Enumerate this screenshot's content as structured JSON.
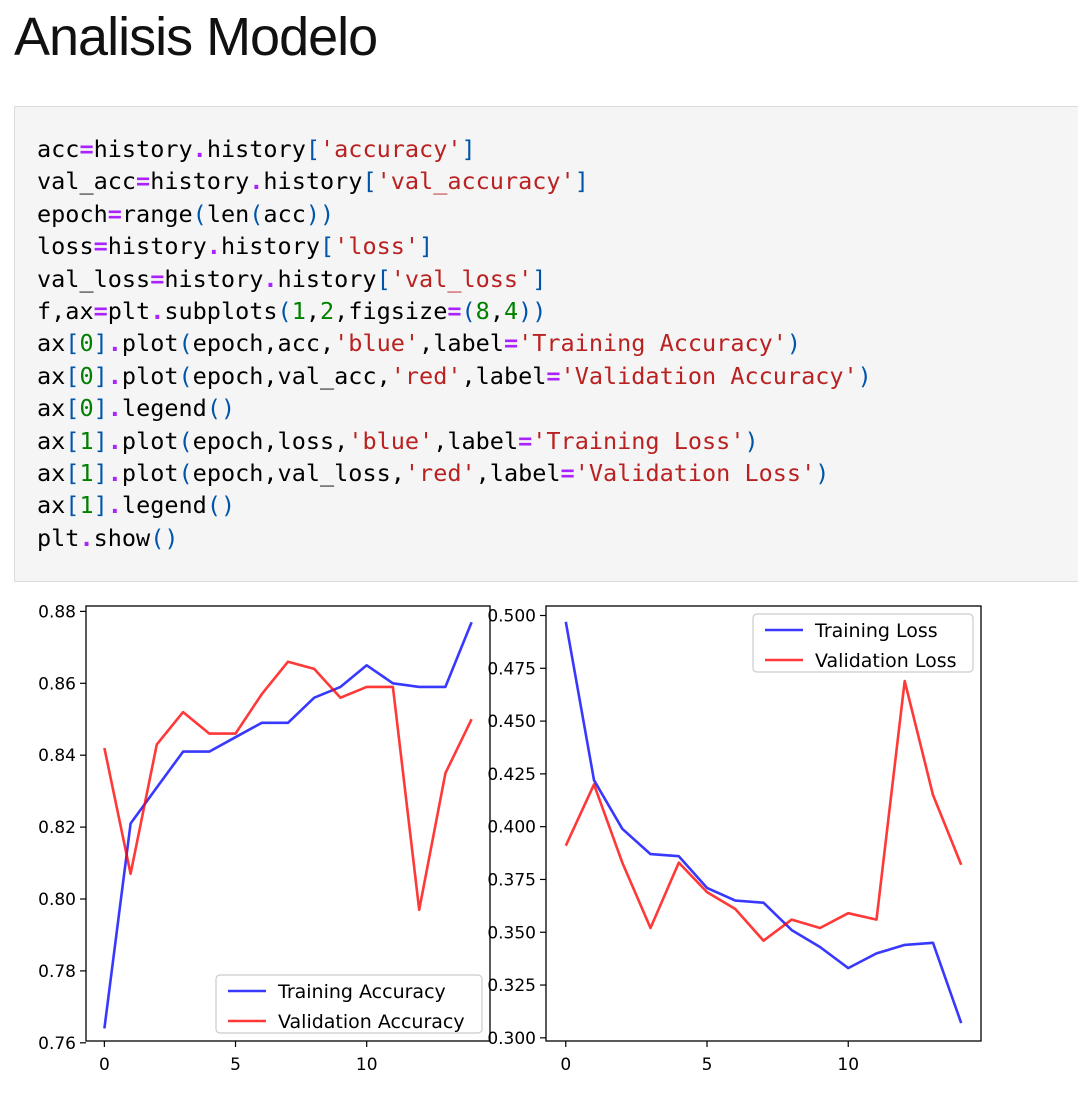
{
  "page": {
    "title": "Analisis Modelo"
  },
  "code_lines": [
    [
      [
        "acc",
        ""
      ],
      [
        "=",
        "op"
      ],
      [
        "history",
        ""
      ],
      [
        ".",
        "op"
      ],
      [
        "history",
        ""
      ],
      [
        "[",
        "b"
      ],
      [
        "'accuracy'",
        "s"
      ],
      [
        "]",
        "b"
      ]
    ],
    [
      [
        "val_acc",
        ""
      ],
      [
        "=",
        "op"
      ],
      [
        "history",
        ""
      ],
      [
        ".",
        "op"
      ],
      [
        "history",
        ""
      ],
      [
        "[",
        "b"
      ],
      [
        "'val_accuracy'",
        "s"
      ],
      [
        "]",
        "b"
      ]
    ],
    [
      [
        "epoch",
        ""
      ],
      [
        "=",
        "op"
      ],
      [
        "range",
        ""
      ],
      [
        "(",
        "b"
      ],
      [
        "len",
        ""
      ],
      [
        "(",
        "b"
      ],
      [
        "acc",
        ""
      ],
      [
        "))",
        "b"
      ]
    ],
    [
      [
        "loss",
        ""
      ],
      [
        "=",
        "op"
      ],
      [
        "history",
        ""
      ],
      [
        ".",
        "op"
      ],
      [
        "history",
        ""
      ],
      [
        "[",
        "b"
      ],
      [
        "'loss'",
        "s"
      ],
      [
        "]",
        "b"
      ]
    ],
    [
      [
        "val_loss",
        ""
      ],
      [
        "=",
        "op"
      ],
      [
        "history",
        ""
      ],
      [
        ".",
        "op"
      ],
      [
        "history",
        ""
      ],
      [
        "[",
        "b"
      ],
      [
        "'val_loss'",
        "s"
      ],
      [
        "]",
        "b"
      ]
    ],
    [
      [
        "f,ax",
        ""
      ],
      [
        "=",
        "op"
      ],
      [
        "plt",
        ""
      ],
      [
        ".",
        "op"
      ],
      [
        "subplots",
        ""
      ],
      [
        "(",
        "b"
      ],
      [
        "1",
        "n"
      ],
      [
        ",",
        ""
      ],
      [
        "2",
        "n"
      ],
      [
        ",figsize",
        ""
      ],
      [
        "=",
        "op"
      ],
      [
        "(",
        "b"
      ],
      [
        "8",
        "n"
      ],
      [
        ",",
        ""
      ],
      [
        "4",
        "n"
      ],
      [
        "))",
        "b"
      ]
    ],
    [
      [
        "ax",
        ""
      ],
      [
        "[",
        "b"
      ],
      [
        "0",
        "n"
      ],
      [
        "]",
        "b"
      ],
      [
        ".",
        "op"
      ],
      [
        "plot",
        ""
      ],
      [
        "(",
        "b"
      ],
      [
        "epoch,acc,",
        ""
      ],
      [
        "'blue'",
        "s"
      ],
      [
        ",label",
        ""
      ],
      [
        "=",
        "op"
      ],
      [
        "'Training Accuracy'",
        "s"
      ],
      [
        ")",
        "b"
      ]
    ],
    [
      [
        "ax",
        ""
      ],
      [
        "[",
        "b"
      ],
      [
        "0",
        "n"
      ],
      [
        "]",
        "b"
      ],
      [
        ".",
        "op"
      ],
      [
        "plot",
        ""
      ],
      [
        "(",
        "b"
      ],
      [
        "epoch,val_acc,",
        ""
      ],
      [
        "'red'",
        "s"
      ],
      [
        ",label",
        ""
      ],
      [
        "=",
        "op"
      ],
      [
        "'Validation Accuracy'",
        "s"
      ],
      [
        ")",
        "b"
      ]
    ],
    [
      [
        "ax",
        ""
      ],
      [
        "[",
        "b"
      ],
      [
        "0",
        "n"
      ],
      [
        "]",
        "b"
      ],
      [
        ".",
        "op"
      ],
      [
        "legend",
        ""
      ],
      [
        "()",
        "b"
      ]
    ],
    [
      [
        "ax",
        ""
      ],
      [
        "[",
        "b"
      ],
      [
        "1",
        "n"
      ],
      [
        "]",
        "b"
      ],
      [
        ".",
        "op"
      ],
      [
        "plot",
        ""
      ],
      [
        "(",
        "b"
      ],
      [
        "epoch,loss,",
        ""
      ],
      [
        "'blue'",
        "s"
      ],
      [
        ",label",
        ""
      ],
      [
        "=",
        "op"
      ],
      [
        "'Training Loss'",
        "s"
      ],
      [
        ")",
        "b"
      ]
    ],
    [
      [
        "ax",
        ""
      ],
      [
        "[",
        "b"
      ],
      [
        "1",
        "n"
      ],
      [
        "]",
        "b"
      ],
      [
        ".",
        "op"
      ],
      [
        "plot",
        ""
      ],
      [
        "(",
        "b"
      ],
      [
        "epoch,val_loss,",
        ""
      ],
      [
        "'red'",
        "s"
      ],
      [
        ",label",
        ""
      ],
      [
        "=",
        "op"
      ],
      [
        "'Validation Loss'",
        "s"
      ],
      [
        ")",
        "b"
      ]
    ],
    [
      [
        "ax",
        ""
      ],
      [
        "[",
        "b"
      ],
      [
        "1",
        "n"
      ],
      [
        "]",
        "b"
      ],
      [
        ".",
        "op"
      ],
      [
        "legend",
        ""
      ],
      [
        "()",
        "b"
      ]
    ],
    [
      [
        "plt",
        ""
      ],
      [
        ".",
        "op"
      ],
      [
        "show",
        ""
      ],
      [
        "()",
        "b"
      ]
    ]
  ],
  "chart_data": [
    {
      "type": "line",
      "title": "",
      "xlabel": "",
      "ylabel": "",
      "xlim": [
        -0.7,
        14.7
      ],
      "ylim": [
        0.7605,
        0.8815
      ],
      "xticks": [
        0,
        5,
        10
      ],
      "yticks": [
        0.76,
        0.78,
        0.8,
        0.82,
        0.84,
        0.86,
        0.88
      ],
      "ytick_labels": [
        "0.76",
        "0.78",
        "0.80",
        "0.82",
        "0.84",
        "0.86",
        "0.88"
      ],
      "legend_position": "lower-right",
      "x": [
        0,
        1,
        2,
        3,
        4,
        5,
        6,
        7,
        8,
        9,
        10,
        11,
        12,
        13,
        14
      ],
      "series": [
        {
          "name": "Training Accuracy",
          "color": "#0000ff",
          "values": [
            0.764,
            0.821,
            0.831,
            0.841,
            0.841,
            0.845,
            0.849,
            0.849,
            0.856,
            0.859,
            0.865,
            0.86,
            0.859,
            0.859,
            0.877
          ]
        },
        {
          "name": "Validation Accuracy",
          "color": "#ff0000",
          "values": [
            0.842,
            0.807,
            0.843,
            0.852,
            0.846,
            0.846,
            0.857,
            0.866,
            0.864,
            0.856,
            0.859,
            0.859,
            0.797,
            0.835,
            0.85
          ]
        }
      ]
    },
    {
      "type": "line",
      "title": "",
      "xlabel": "",
      "ylabel": "",
      "xlim": [
        -0.7,
        14.7
      ],
      "ylim": [
        0.2985,
        0.5045
      ],
      "xticks": [
        0,
        5,
        10
      ],
      "yticks": [
        0.3,
        0.325,
        0.35,
        0.375,
        0.4,
        0.425,
        0.45,
        0.475,
        0.5
      ],
      "ytick_labels": [
        "0.300",
        "0.325",
        "0.350",
        "0.375",
        "0.400",
        "0.425",
        "0.450",
        "0.475",
        "0.500"
      ],
      "legend_position": "top-right",
      "x": [
        0,
        1,
        2,
        3,
        4,
        5,
        6,
        7,
        8,
        9,
        10,
        11,
        12,
        13,
        14
      ],
      "series": [
        {
          "name": "Training Loss",
          "color": "#0000ff",
          "values": [
            0.497,
            0.422,
            0.399,
            0.387,
            0.386,
            0.371,
            0.365,
            0.364,
            0.351,
            0.343,
            0.333,
            0.34,
            0.344,
            0.345,
            0.307
          ]
        },
        {
          "name": "Validation Loss",
          "color": "#ff0000",
          "values": [
            0.391,
            0.42,
            0.383,
            0.352,
            0.383,
            0.369,
            0.361,
            0.346,
            0.356,
            0.352,
            0.359,
            0.356,
            0.469,
            0.415,
            0.382
          ]
        }
      ]
    }
  ]
}
